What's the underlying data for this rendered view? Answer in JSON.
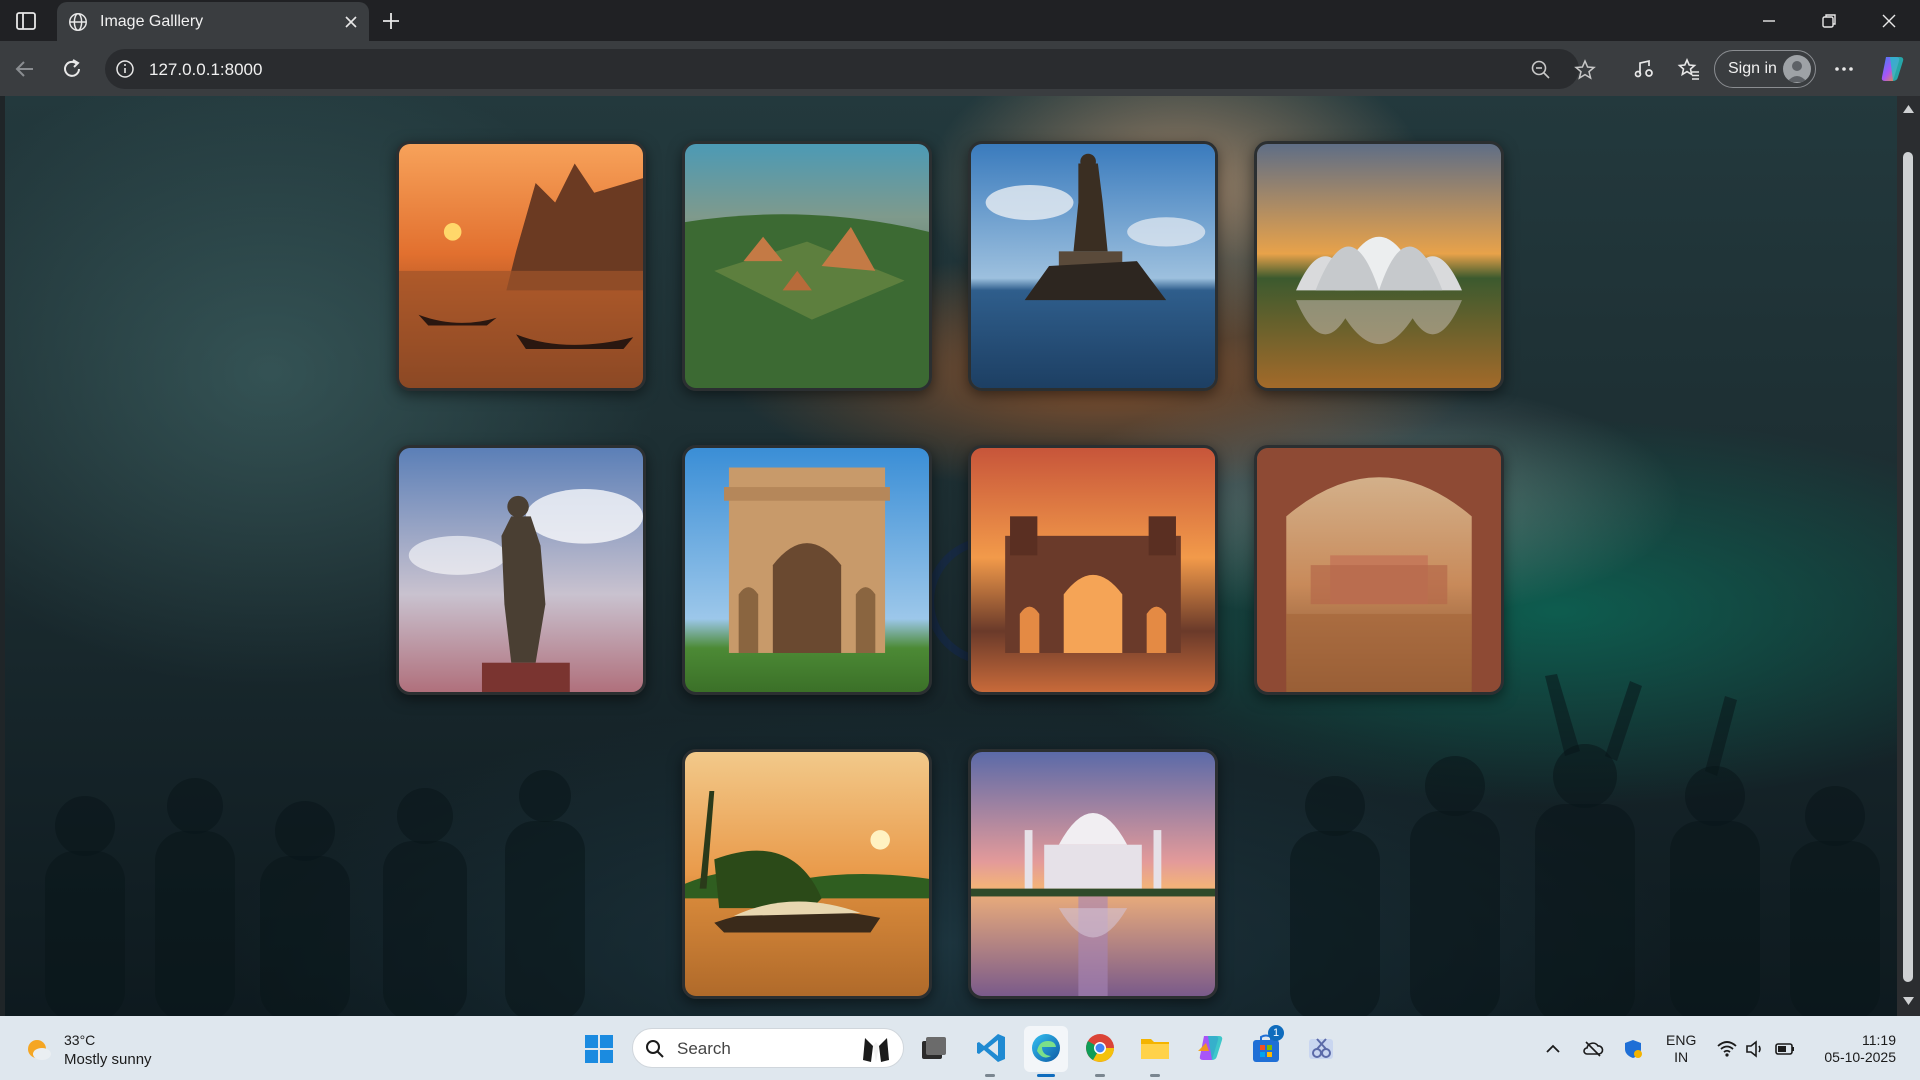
{
  "browser": {
    "tab": {
      "title": "Image Galllery"
    },
    "address": {
      "url": "127.0.0.1:8000"
    },
    "signin_label": "Sign in"
  },
  "gallery": {
    "images": [
      {
        "name": "sunset-river-ghats"
      },
      {
        "name": "aerial-temple-landscape"
      },
      {
        "name": "statue-on-sea-rock"
      },
      {
        "name": "lotus-shaped-temple"
      },
      {
        "name": "tall-statue-against-sky"
      },
      {
        "name": "monumental-arch-gate"
      },
      {
        "name": "harbour-gateway-at-sunset"
      },
      {
        "name": "palace-framed-by-arch"
      },
      {
        "name": "houseboat-on-backwaters"
      },
      {
        "name": "white-marble-mausoleum"
      }
    ]
  },
  "taskbar": {
    "weather": {
      "temp": "33°C",
      "desc": "Mostly sunny"
    },
    "search_label": "Search",
    "store_badge": "1",
    "language": {
      "line1": "ENG",
      "line2": "IN"
    },
    "clock": {
      "time": "11:19",
      "date": "05-10-2025"
    }
  },
  "colors": {
    "accent": "#0f6cbd",
    "chrome_dark": "#202124",
    "chrome_mid": "#3a3d40",
    "taskbar": "#dfe7ee"
  }
}
